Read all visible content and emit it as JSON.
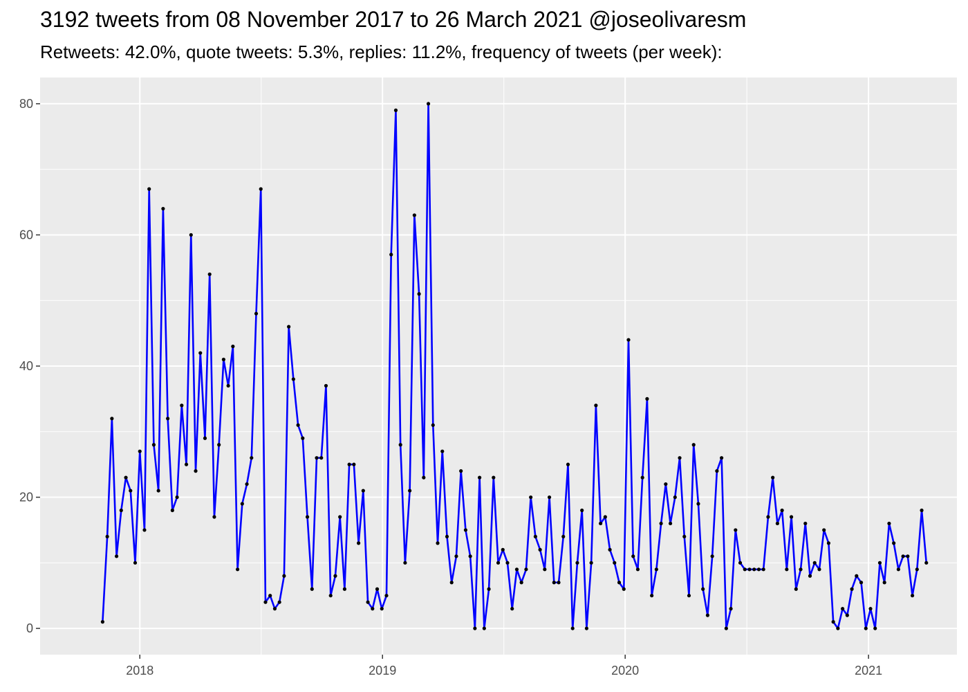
{
  "chart_data": {
    "type": "line",
    "title": "3192 tweets from 08 November 2017 to 26 March 2021 @joseolivaresm",
    "subtitle": "Retweets: 42.0%, quote tweets: 5.3%, replies: 11.2%, frequency of tweets (per week):",
    "xlabel": "",
    "ylabel": "",
    "x_start_date": "2017-11-06",
    "x_interval": "1 week",
    "y_ticks": [
      0,
      20,
      40,
      60,
      80
    ],
    "x_ticks": [
      {
        "label": "2018",
        "date": "2018-01-01"
      },
      {
        "label": "2019",
        "date": "2019-01-01"
      },
      {
        "label": "2020",
        "date": "2020-01-01"
      },
      {
        "label": "2021",
        "date": "2021-01-01"
      }
    ],
    "xlim": [
      "2017-08-04",
      "2021-05-14"
    ],
    "ylim": [
      -4,
      84
    ],
    "grid": true,
    "series_color": "#0000ff",
    "point_color": "#000000",
    "background_color": "#ebebeb",
    "series": [
      {
        "values": [
          1,
          14,
          32,
          11,
          18,
          23,
          21,
          10,
          27,
          15,
          67,
          28,
          21,
          64,
          32,
          18,
          20,
          34,
          25,
          60,
          24,
          42,
          29,
          54,
          17,
          28,
          41,
          37,
          43,
          9,
          19,
          22,
          26,
          48,
          67,
          4,
          5,
          3,
          4,
          8,
          46,
          38,
          31,
          29,
          17,
          6,
          26,
          26,
          37,
          5,
          8,
          17,
          6,
          25,
          25,
          13,
          21,
          4,
          3,
          6,
          3,
          5,
          57,
          79,
          28,
          10,
          21,
          63,
          51,
          23,
          80,
          31,
          13,
          27,
          14,
          7,
          11,
          24,
          15,
          11,
          0,
          23,
          0,
          6,
          23,
          10,
          12,
          10,
          3,
          9,
          7,
          9,
          20,
          14,
          12,
          9,
          20,
          7,
          7,
          14,
          25,
          0,
          10,
          18,
          0,
          10,
          34,
          16,
          17,
          12,
          10,
          7,
          6,
          44,
          11,
          9,
          23,
          35,
          5,
          9,
          16,
          22,
          16,
          20,
          26,
          14,
          5,
          28,
          19,
          6,
          2,
          11,
          24,
          26,
          0,
          3,
          15,
          10,
          9,
          9,
          9,
          9,
          9,
          17,
          23,
          16,
          18,
          9,
          17,
          6,
          9,
          16,
          8,
          10,
          9,
          15,
          13,
          1,
          0,
          3,
          2,
          6,
          8,
          7,
          0,
          3,
          0,
          10,
          7,
          16,
          13,
          9,
          11,
          11,
          5,
          9,
          18,
          10
        ]
      }
    ]
  }
}
